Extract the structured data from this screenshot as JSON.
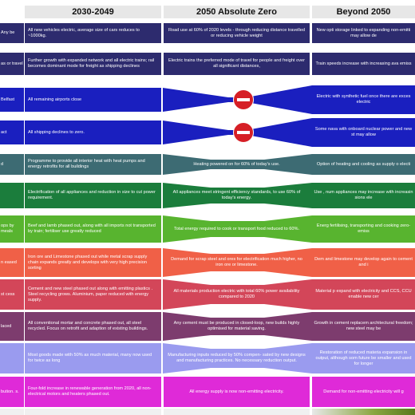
{
  "headers": {
    "col1": "2030-2049",
    "col2": "2050 Absolute Zero",
    "col3": "Beyond 2050"
  },
  "colors": {
    "transport": "#2d2b6e",
    "flight": "#1a1fbf",
    "heating": "#3d6b73",
    "appliances": "#1b7d3c",
    "food": "#58b42f",
    "steel": "#f06047",
    "cement": "#d34659",
    "construction": "#7d3c6e",
    "goods": "#9a9bef",
    "energy": "#df2ad8",
    "stop": "#d61f26"
  },
  "rows": [
    {
      "stub": "Any be",
      "col1": "All new vehicles electric, average size of cars reduces to ~1000kg.",
      "col2": "Road use at 60% of 2020 levels - through reducing distance travelled or reducing vehicle weight",
      "col3": "New opti storage linked to expanding non-emitti may allow de"
    },
    {
      "stub": "as or travel",
      "col1": "Further growth with expanded network and all electric trains; rail becomes dominant mode for freight as shipping declines",
      "col2": "Electric trains the preferred mode of travel for people and freight over all significant distances,",
      "col3": "Train speeds increase with increasing ava emiss"
    },
    {
      "stub": "Belfast",
      "col1": "All remaining airports close",
      "col2": "",
      "col3": "Electric with synthetic fuel once there are exces electric"
    },
    {
      "stub": "act",
      "col1": "All shipping declines to zero.",
      "col2": "",
      "col3": "Some nava with onboard nuclear power and new st may allow"
    },
    {
      "stub": "d",
      "col1": "Programme to provide all interior heat with heat pumps and energy retrofits for all buildings",
      "col2": "Heating powered on for 60% of today's use.",
      "col3": "Option of heating and cooling as supply o electi"
    },
    {
      "stub": "",
      "col1": "Electrification of all appliances and reduction in size to cut power requirement.",
      "col2": "All appliances meet stringent efficiency standards, to use 60% of today's energy.",
      "col3": "Use , num appliances may increase with increasin sions ele"
    },
    {
      "stub": "ops by meals",
      "col1": "Beef and lamb phased out, along with all imports not transported by train; fertiliser use greatly reduced",
      "col2": "Total energy required to cook or transport food reduced to 60%.",
      "col3": "Energ fertilising, transporting and cooking zero-emiss"
    },
    {
      "stub": "n eased",
      "col1": "Iron ore and Limestone phased out while metal scrap supply chain expands greatly and develops with very high precision sorting",
      "col2": "Demand for scrap steel and ores for electrification much higher, no iron ore or limestone.",
      "col3": "Dem and limestone may develop again to cement and i"
    },
    {
      "stub": "st cess",
      "col1": "Cement and new steel phased out along with emitting plastics . Steel recycling grows. Aluminium, paper reduced with energy supply.",
      "col2": "All materials production electric with total 60% power availability compared to 2020",
      "col3": "Material p expand with electricity and CCS, CCU enable new cer"
    },
    {
      "stub": "laced",
      "col1": "All conventional mortar and concrete phased out, all steel recycled. Focus on retrofit and adaption of existing buildings.",
      "col2": "Any cement must be produced in closed-loop, new builds highly optimised for material saving.",
      "col3": "Growth in cement replacem architectural freedom; new steel may be"
    },
    {
      "stub": "",
      "col1": "Most goods made with 50% as much material, many now used for twice as long",
      "col2": "Manufacturing inputs reduced by 50% compen- sated by new designs and manufacturing practices. No necessary reduction output.",
      "col3": "Restoration of reduced materia expansion in output, although som future be smaller and used for longer"
    },
    {
      "stub": "bution. s.",
      "col1": "Four-fold increase in renewable generation from 2020, all non-electrical motors and heaters phased out.",
      "col2": "All energy supply is now non-emitting electricity.",
      "col3": "Demand for non-emitting electricity will g"
    }
  ]
}
